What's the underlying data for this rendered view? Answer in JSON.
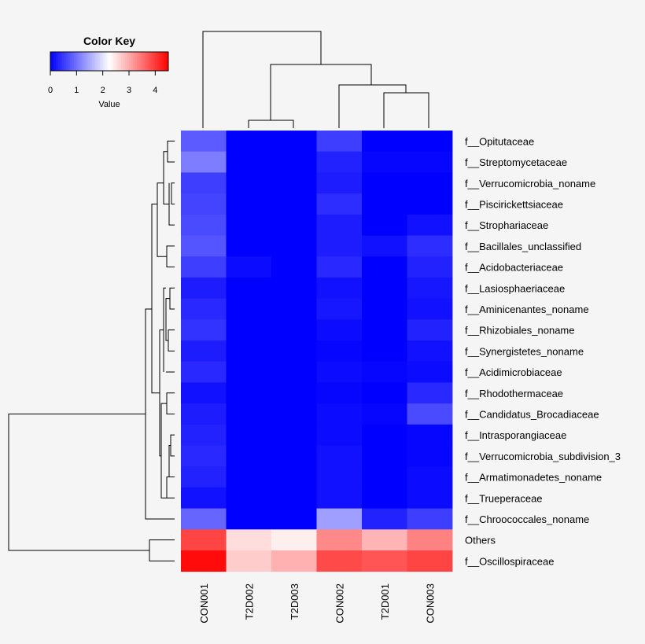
{
  "chart_data": {
    "type": "heatmap",
    "color_key": {
      "title": "Color Key",
      "xlabel": "Value",
      "ticks": [
        "0",
        "1",
        "2",
        "3",
        "4"
      ],
      "range": [
        0,
        4.5
      ],
      "colors": [
        "#0000ff",
        "#ffffff",
        "#ff0000"
      ]
    },
    "columns": [
      "CON001",
      "T2D002",
      "T2D003",
      "CON002",
      "T2D001",
      "CON003"
    ],
    "rows": [
      "f__Opitutaceae",
      "f__Streptomycetaceae",
      "f__Verrucomicrobia_noname",
      "f__Piscirickettsiaceae",
      "f__Strophariaceae",
      "f__Bacillales_unclassified",
      "f__Acidobacteriaceae",
      "f__Lasiosphaeriaceae",
      "f__Aminicenantes_noname",
      "f__Rhizobiales_noname",
      "f__Synergistetes_noname",
      "f__Acidimicrobiaceae",
      "f__Rhodothermaceae",
      "f__Candidatus_Brocadiaceae",
      "f__Intrasporangiaceae",
      "f__Verrucomicrobia_subdivision_3",
      "f__Armatimonadetes_noname",
      "f__Trueperaceae",
      "f__Chroococcales_noname",
      "Others",
      "f__Oscillospiraceae"
    ],
    "values": [
      [
        0.8,
        0.0,
        0.0,
        0.55,
        0.0,
        0.0
      ],
      [
        1.1,
        0.0,
        0.0,
        0.3,
        0.05,
        0.05
      ],
      [
        0.55,
        0.0,
        0.0,
        0.25,
        0.0,
        0.0
      ],
      [
        0.6,
        0.0,
        0.0,
        0.4,
        0.0,
        0.0
      ],
      [
        0.65,
        0.0,
        0.0,
        0.25,
        0.0,
        0.15
      ],
      [
        0.75,
        0.0,
        0.0,
        0.25,
        0.15,
        0.4
      ],
      [
        0.55,
        0.1,
        0.0,
        0.35,
        0.0,
        0.3
      ],
      [
        0.25,
        0.0,
        0.0,
        0.15,
        0.0,
        0.2
      ],
      [
        0.35,
        0.0,
        0.0,
        0.2,
        0.0,
        0.15
      ],
      [
        0.45,
        0.0,
        0.0,
        0.1,
        0.0,
        0.3
      ],
      [
        0.25,
        0.0,
        0.0,
        0.05,
        0.0,
        0.15
      ],
      [
        0.35,
        0.0,
        0.0,
        0.1,
        0.05,
        0.1
      ],
      [
        0.15,
        0.0,
        0.0,
        0.05,
        0.0,
        0.35
      ],
      [
        0.25,
        0.0,
        0.0,
        0.1,
        0.05,
        0.65
      ],
      [
        0.3,
        0.0,
        0.0,
        0.1,
        0.0,
        0.05
      ],
      [
        0.35,
        0.0,
        0.0,
        0.15,
        0.0,
        0.05
      ],
      [
        0.3,
        0.0,
        0.0,
        0.15,
        0.0,
        0.1
      ],
      [
        0.15,
        0.0,
        0.0,
        0.15,
        0.0,
        0.1
      ],
      [
        0.9,
        0.0,
        0.0,
        1.4,
        0.3,
        0.55
      ],
      [
        3.9,
        2.55,
        2.4,
        3.3,
        2.9,
        3.35
      ],
      [
        4.4,
        2.7,
        2.95,
        3.85,
        3.75,
        3.9
      ]
    ],
    "row_dendrogram": "hierarchical clustering of rows; Others and f__Oscillospiraceae form a separate top-level cluster",
    "column_dendrogram": "CON001 splits first; T2D002+T2D003 cluster; CON002 joins T2D001+CON003"
  }
}
